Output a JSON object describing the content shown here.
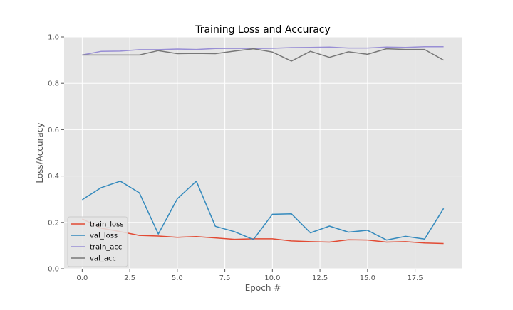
{
  "chart_data": {
    "type": "line",
    "title": "Training Loss and Accuracy",
    "xlabel": "Epoch #",
    "ylabel": "Loss/Accuracy",
    "xlim": [
      -0.95,
      19.95
    ],
    "ylim": [
      0,
      1.0
    ],
    "x_ticks": [
      0.0,
      2.5,
      5.0,
      7.5,
      10.0,
      12.5,
      15.0,
      17.5
    ],
    "x_tick_labels": [
      "0.0",
      "2.5",
      "5.0",
      "7.5",
      "10.0",
      "12.5",
      "15.0",
      "17.5"
    ],
    "y_ticks": [
      0.0,
      0.2,
      0.4,
      0.6,
      0.8,
      1.0
    ],
    "y_tick_labels": [
      "0.0",
      "0.2",
      "0.4",
      "0.6",
      "0.8",
      "1.0"
    ],
    "grid": true,
    "legend_position": "lower-left",
    "x": [
      0,
      1,
      2,
      3,
      4,
      5,
      6,
      7,
      8,
      9,
      10,
      11,
      12,
      13,
      14,
      15,
      16,
      17,
      18,
      19
    ],
    "series": [
      {
        "name": "train_loss",
        "color": "#E24A33",
        "values": [
          0.215,
          0.175,
          0.16,
          0.144,
          0.141,
          0.136,
          0.139,
          0.133,
          0.127,
          0.129,
          0.129,
          0.12,
          0.117,
          0.115,
          0.125,
          0.124,
          0.115,
          0.117,
          0.111,
          0.109
        ]
      },
      {
        "name": "val_loss",
        "color": "#348ABD",
        "values": [
          0.298,
          0.35,
          0.378,
          0.328,
          0.15,
          0.302,
          0.378,
          0.183,
          0.16,
          0.126,
          0.235,
          0.237,
          0.155,
          0.184,
          0.158,
          0.166,
          0.124,
          0.14,
          0.128,
          0.26
        ]
      },
      {
        "name": "train_acc",
        "color": "#988ED5",
        "values": [
          0.922,
          0.938,
          0.939,
          0.945,
          0.945,
          0.948,
          0.946,
          0.95,
          0.951,
          0.95,
          0.951,
          0.954,
          0.955,
          0.956,
          0.952,
          0.952,
          0.956,
          0.955,
          0.958,
          0.958
        ]
      },
      {
        "name": "val_acc",
        "color": "#777777",
        "values": [
          0.922,
          0.922,
          0.922,
          0.922,
          0.941,
          0.928,
          0.929,
          0.928,
          0.939,
          0.949,
          0.935,
          0.896,
          0.938,
          0.912,
          0.936,
          0.925,
          0.949,
          0.946,
          0.946,
          0.9
        ]
      }
    ],
    "style": {
      "axes_bg": "#E5E5E5",
      "grid_color": "#FFFFFF",
      "text_color": "#000000",
      "tick_label_color": "#555555",
      "legend_bg": "#E5E5E5",
      "legend_border": "#CCCCCC"
    }
  }
}
